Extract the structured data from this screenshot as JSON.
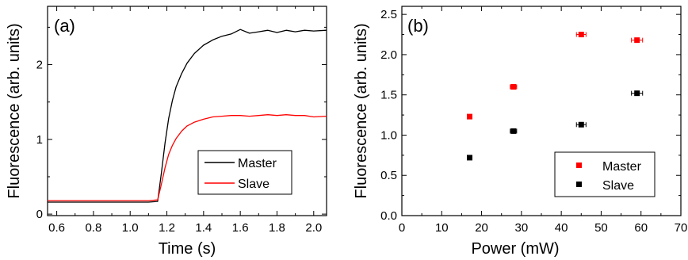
{
  "chart_data": [
    {
      "type": "line",
      "panel_label": "(a)",
      "xlabel": "Time (s)",
      "ylabel": "Fluorescence (arb. units)",
      "xlim": [
        0.55,
        2.07
      ],
      "ylim": [
        -0.02,
        2.78
      ],
      "xticks": [
        0.6,
        0.8,
        1.0,
        1.2,
        1.4,
        1.6,
        1.8,
        2.0
      ],
      "xtick_labels": [
        "0.6",
        "0.8",
        "1.0",
        "1.2",
        "1.4",
        "1.6",
        "1.8",
        "2.0"
      ],
      "yticks": [
        0,
        1,
        2
      ],
      "ytick_labels": [
        "0",
        "1",
        "2"
      ],
      "legend_position": "lower-right",
      "series": [
        {
          "name": "Master",
          "color": "#000000",
          "x": [
            0.55,
            0.7,
            0.85,
            1.0,
            1.1,
            1.15,
            1.17,
            1.19,
            1.21,
            1.23,
            1.25,
            1.28,
            1.31,
            1.35,
            1.4,
            1.45,
            1.5,
            1.55,
            1.6,
            1.65,
            1.7,
            1.75,
            1.8,
            1.85,
            1.9,
            1.95,
            2.0,
            2.07
          ],
          "y": [
            0.16,
            0.16,
            0.16,
            0.16,
            0.16,
            0.17,
            0.55,
            0.95,
            1.28,
            1.52,
            1.7,
            1.88,
            2.02,
            2.15,
            2.26,
            2.33,
            2.38,
            2.41,
            2.47,
            2.42,
            2.44,
            2.46,
            2.43,
            2.46,
            2.44,
            2.46,
            2.45,
            2.46
          ]
        },
        {
          "name": "Slave",
          "color": "#ff0000",
          "x": [
            0.55,
            0.7,
            0.85,
            1.0,
            1.1,
            1.15,
            1.17,
            1.19,
            1.21,
            1.23,
            1.25,
            1.28,
            1.31,
            1.35,
            1.4,
            1.45,
            1.5,
            1.55,
            1.6,
            1.65,
            1.7,
            1.75,
            1.8,
            1.85,
            1.9,
            1.95,
            2.0,
            2.07
          ],
          "y": [
            0.18,
            0.18,
            0.18,
            0.18,
            0.18,
            0.19,
            0.4,
            0.62,
            0.8,
            0.92,
            1.01,
            1.11,
            1.18,
            1.23,
            1.27,
            1.3,
            1.31,
            1.32,
            1.32,
            1.31,
            1.32,
            1.33,
            1.32,
            1.33,
            1.32,
            1.32,
            1.3,
            1.31
          ]
        }
      ]
    },
    {
      "type": "scatter",
      "panel_label": "(b)",
      "xlabel": "Power (mW)",
      "ylabel": "Fluorescence (arb. units)",
      "xlim": [
        0,
        70
      ],
      "ylim": [
        0,
        2.6
      ],
      "xticks": [
        0,
        10,
        20,
        30,
        40,
        50,
        60,
        70
      ],
      "xtick_labels": [
        "0",
        "10",
        "20",
        "30",
        "40",
        "50",
        "60",
        "70"
      ],
      "yticks": [
        0.0,
        0.5,
        1.0,
        1.5,
        2.0,
        2.5
      ],
      "ytick_labels": [
        "0.0",
        "0.5",
        "1.0",
        "1.5",
        "2.0",
        "2.5"
      ],
      "legend_position": "lower-right",
      "series": [
        {
          "name": "Master",
          "color": "#ff0000",
          "x": [
            17,
            28,
            45,
            59
          ],
          "y": [
            1.23,
            1.6,
            2.25,
            2.18
          ],
          "xerr": [
            0,
            0.8,
            1.2,
            1.4
          ]
        },
        {
          "name": "Slave",
          "color": "#000000",
          "x": [
            17,
            28,
            45,
            59
          ],
          "y": [
            0.72,
            1.05,
            1.13,
            1.52
          ],
          "xerr": [
            0,
            0.8,
            1.2,
            1.4
          ]
        }
      ]
    }
  ]
}
